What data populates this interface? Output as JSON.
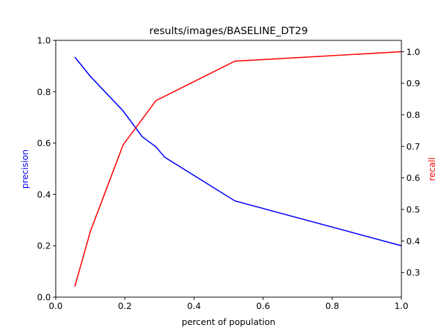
{
  "chart_data": {
    "type": "line",
    "title": "results/images/BASELINE_DT29",
    "xlabel": "percent of population",
    "xlim": [
      0.0,
      1.0
    ],
    "xticks": [
      "0.0",
      "0.2",
      "0.4",
      "0.6",
      "0.8",
      "1.0"
    ],
    "y_left": {
      "label": "precision",
      "color": "#0000ff",
      "ylim": [
        0.0,
        1.0
      ],
      "ticks": [
        "0.0",
        "0.2",
        "0.4",
        "0.6",
        "0.8",
        "1.0"
      ]
    },
    "y_right": {
      "label": "recall",
      "color": "#ff0000",
      "ylim": [
        0.222,
        1.036
      ],
      "ticks": [
        "0.3",
        "0.4",
        "0.5",
        "0.6",
        "0.7",
        "0.8",
        "0.9",
        "1.0"
      ]
    },
    "series": [
      {
        "axis": "left",
        "color": "#0000ff",
        "x": [
          0.055,
          0.1,
          0.195,
          0.25,
          0.29,
          0.315,
          0.518,
          1.0
        ],
        "y": [
          0.935,
          0.86,
          0.725,
          0.625,
          0.585,
          0.545,
          0.375,
          0.2
        ]
      },
      {
        "axis": "right",
        "color": "#ff0000",
        "x": [
          0.055,
          0.1,
          0.195,
          0.29,
          0.518,
          1.0
        ],
        "y": [
          0.255,
          0.43,
          0.705,
          0.845,
          0.97,
          1.0
        ]
      }
    ],
    "grid": false
  }
}
